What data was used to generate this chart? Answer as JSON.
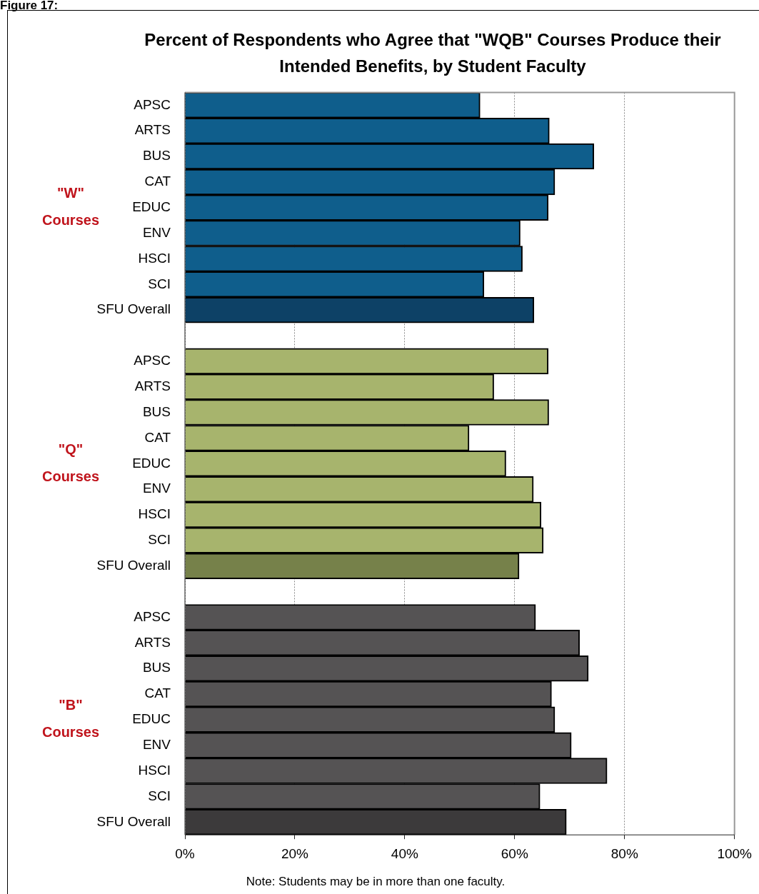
{
  "chart_data": {
    "type": "bar",
    "orientation": "horizontal",
    "title": "Percent of Respondents who Agree that \"WQB\" Courses Produce their Intended Benefits, by Student Faculty",
    "categories": [
      "APSC",
      "ARTS",
      "BUS",
      "CAT",
      "EDUC",
      "ENV",
      "HSCI",
      "SCI",
      "SFU Overall",
      null,
      "APSC",
      "ARTS",
      "BUS",
      "CAT",
      "EDUC",
      "ENV",
      "HSCI",
      "SCI",
      "SFU Overall",
      null,
      "APSC",
      "ARTS",
      "BUS",
      "CAT",
      "EDUC",
      "ENV",
      "HSCI",
      "SCI",
      "SFU Overall"
    ],
    "values": [
      53.7,
      66.3,
      74.4,
      67.3,
      66.1,
      61.0,
      61.4,
      54.4,
      63.5,
      null,
      66.1,
      56.2,
      66.2,
      51.7,
      58.4,
      63.4,
      64.8,
      65.2,
      60.8,
      null,
      63.8,
      71.8,
      73.4,
      66.7,
      67.3,
      70.3,
      76.8,
      64.6,
      69.4
    ],
    "colors": [
      "#0f5e8c",
      "#0f5e8c",
      "#0f5e8c",
      "#0f5e8c",
      "#0f5e8c",
      "#0f5e8c",
      "#0f5e8c",
      "#0f5e8c",
      "#0d4166",
      null,
      "#a7b46d",
      "#a7b46d",
      "#a7b46d",
      "#a7b46d",
      "#a7b46d",
      "#a7b46d",
      "#a7b46d",
      "#a7b46d",
      "#76814a",
      null,
      "#555354",
      "#555354",
      "#555354",
      "#555354",
      "#555354",
      "#555354",
      "#555354",
      "#555354",
      "#3c3a3b"
    ],
    "xlim": [
      0,
      100
    ],
    "xticks": [
      {
        "value": 0,
        "label": "0%"
      },
      {
        "value": 20,
        "label": "20%"
      },
      {
        "value": 40,
        "label": "40%"
      },
      {
        "value": 60,
        "label": "60%"
      },
      {
        "value": 80,
        "label": "80%"
      },
      {
        "value": 100,
        "label": "100%"
      }
    ],
    "grid": "x",
    "legend": false,
    "annotations": [
      "Figure 17:",
      "\"W\" Courses",
      "\"Q\" Courses",
      "\"B\" Courses",
      "Note: Students may be in more than one faculty."
    ]
  }
}
